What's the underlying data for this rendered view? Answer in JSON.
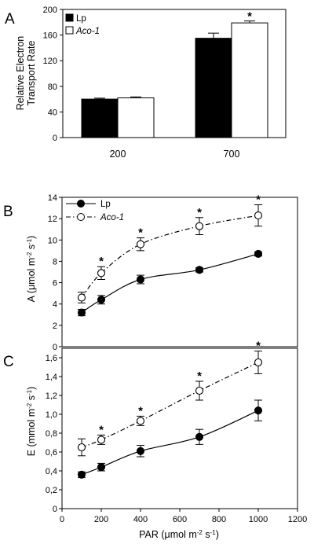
{
  "chart_data": [
    {
      "panel": "A",
      "type": "bar",
      "categories": [
        "200",
        "700"
      ],
      "ylabel_lines": [
        "Relative Electron",
        "Transport Rate"
      ],
      "xlabel": "",
      "ylim": [
        0,
        200
      ],
      "yticks": [
        0,
        40,
        80,
        120,
        160,
        200
      ],
      "grid": false,
      "legend_placement": "top-left",
      "series": [
        {
          "name": "Lp",
          "values": [
            60,
            155
          ],
          "errors": [
            1.5,
            8
          ],
          "style": "filled",
          "color": "#000000"
        },
        {
          "name": "Aco-1",
          "values": [
            62,
            179
          ],
          "errors": [
            1.5,
            3
          ],
          "style": "open",
          "color": "#ffffff",
          "italic": true
        }
      ],
      "significance": [
        {
          "series": "Aco-1",
          "category": "700",
          "mark": "*"
        }
      ]
    },
    {
      "panel": "B",
      "type": "line",
      "ylabel": "A (μmol m-2 s-1)",
      "ylim": [
        0,
        14
      ],
      "yticks": [
        0,
        2,
        4,
        6,
        8,
        10,
        12,
        14
      ],
      "xlim": [
        0,
        1200
      ],
      "grid": false,
      "legend_placement": "top-left",
      "series": [
        {
          "name": "Lp",
          "marker": "filled-circle",
          "line": "solid",
          "x": [
            100,
            200,
            400,
            700,
            1000
          ],
          "y": [
            3.2,
            4.4,
            6.3,
            7.2,
            8.7
          ],
          "errors": [
            0.3,
            0.4,
            0.4,
            0.2,
            0.2
          ]
        },
        {
          "name": "Aco-1",
          "marker": "open-circle",
          "line": "dash-dot",
          "x": [
            100,
            200,
            400,
            700,
            1000
          ],
          "y": [
            4.6,
            6.9,
            9.6,
            11.3,
            12.3
          ],
          "errors": [
            0.5,
            0.6,
            0.6,
            0.8,
            1.0
          ]
        }
      ],
      "significance_x": [
        200,
        400,
        700,
        1000
      ]
    },
    {
      "panel": "C",
      "type": "line",
      "ylabel": "E (mmol m-2 s-1)",
      "xlabel": "PAR (μmol m-2 s-1)",
      "ylim": [
        0,
        1.7
      ],
      "yticks": [
        "0",
        "0,2",
        "0,4",
        "0,6",
        "0,8",
        "1,0",
        "1,2",
        "1,4",
        "1,6"
      ],
      "ytick_values": [
        0,
        0.2,
        0.4,
        0.6,
        0.8,
        1.0,
        1.2,
        1.4,
        1.6
      ],
      "xlim": [
        0,
        1200
      ],
      "xticks": [
        0,
        200,
        400,
        600,
        800,
        1000,
        1200
      ],
      "grid": false,
      "series": [
        {
          "name": "Lp",
          "marker": "filled-circle",
          "line": "solid",
          "x": [
            100,
            200,
            400,
            700,
            1000
          ],
          "y": [
            0.36,
            0.44,
            0.61,
            0.76,
            1.04
          ],
          "errors": [
            0.03,
            0.04,
            0.06,
            0.08,
            0.11
          ]
        },
        {
          "name": "Aco-1",
          "marker": "open-circle",
          "line": "dash-dot",
          "x": [
            100,
            200,
            400,
            700,
            1000
          ],
          "y": [
            0.65,
            0.73,
            0.93,
            1.25,
            1.55
          ],
          "errors": [
            0.09,
            0.05,
            0.05,
            0.1,
            0.12
          ]
        }
      ],
      "significance_x": [
        200,
        400,
        700,
        1000
      ]
    }
  ]
}
